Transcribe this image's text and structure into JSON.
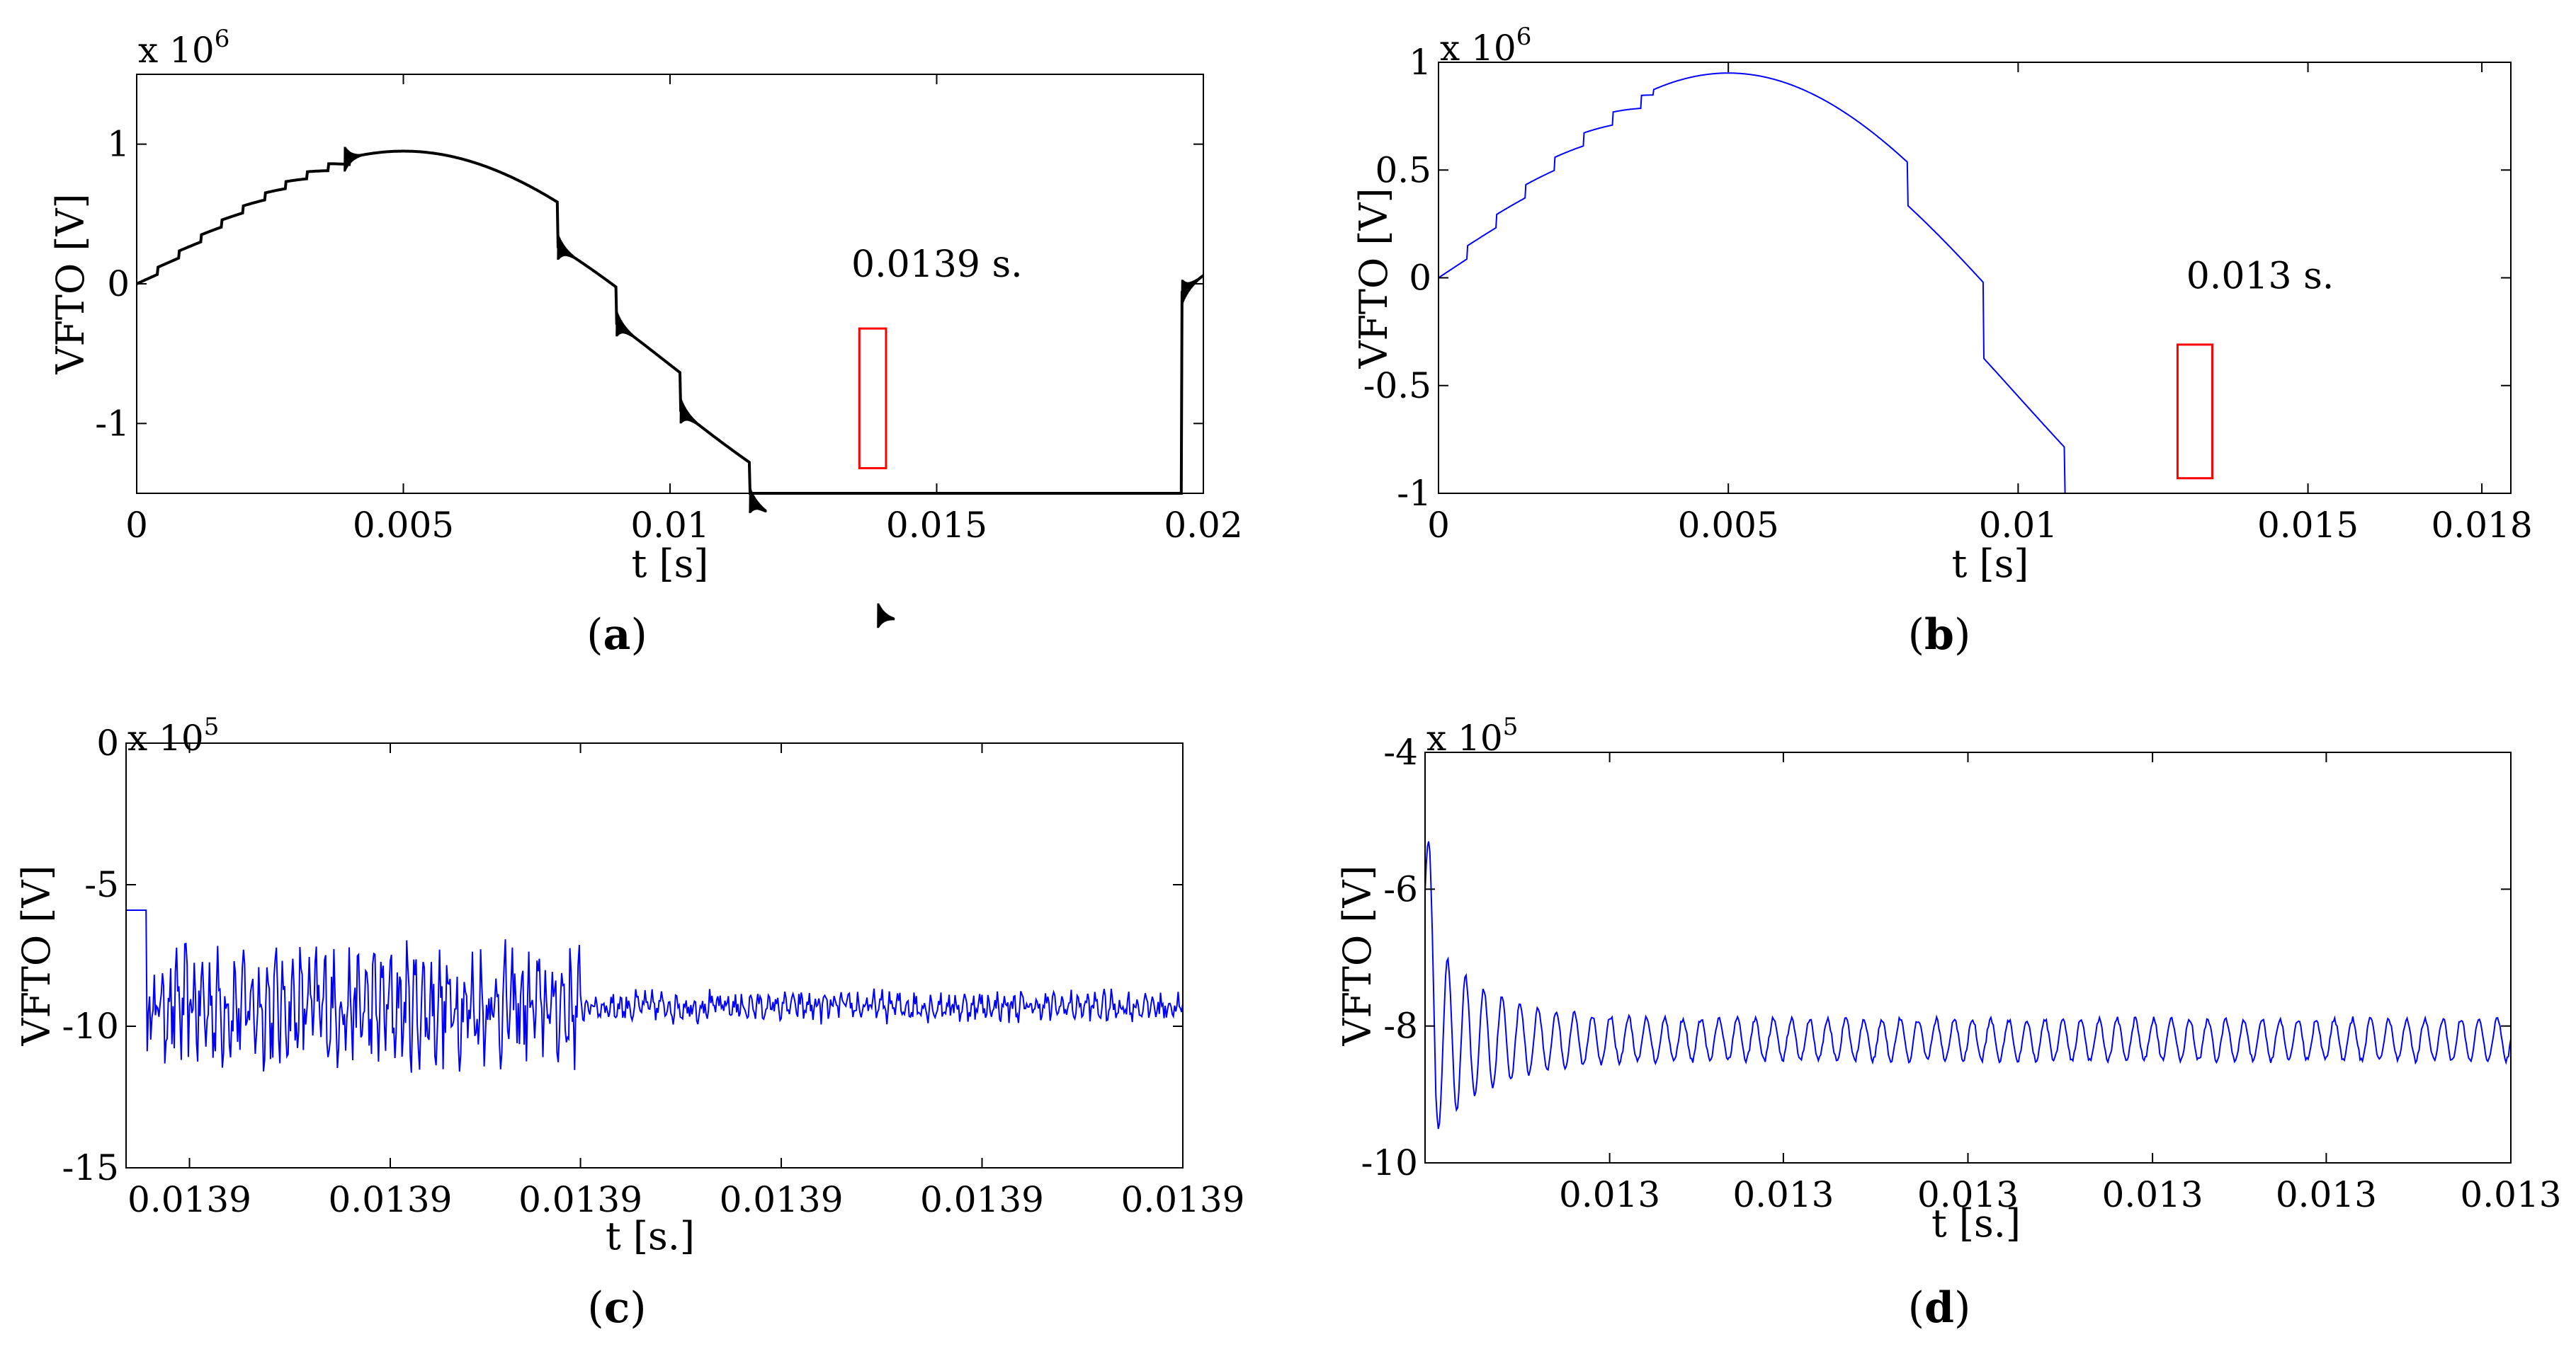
{
  "colors": {
    "black": "#000000",
    "blue": "#0000ff",
    "red": "#ff0000"
  },
  "panels": {
    "a": {
      "label_open": "(",
      "label_letter": "a",
      "label_close": ")"
    },
    "b": {
      "label_open": "(",
      "label_letter": "b",
      "label_close": ")"
    },
    "c": {
      "label_open": "(",
      "label_letter": "c",
      "label_close": ")"
    },
    "d": {
      "label_open": "(",
      "label_letter": "d",
      "label_close": ")"
    }
  },
  "chart_data": [
    {
      "id": "a",
      "type": "line",
      "xlabel": "t [s]",
      "ylabel": "VFTO [V]",
      "exponent_base": "x 10",
      "exponent_power": "6",
      "xlim": [
        0,
        0.02
      ],
      "ylim": [
        -1.5,
        1.5
      ],
      "xticks": [
        0,
        0.005,
        0.01,
        0.015,
        0.02
      ],
      "xtick_labels": [
        "0",
        "0.005",
        "0.01",
        "0.015",
        "0.02"
      ],
      "yticks": [
        -1,
        0,
        1
      ],
      "ytick_labels": [
        "-1",
        "0",
        "1"
      ],
      "series_color": "#000000",
      "series_description": "sine 0.95e6*sin(2*pi*50*t) shifted down at each breaker restrike",
      "step_times": [
        0.0008,
        0.0012,
        0.0016,
        0.002,
        0.0024,
        0.0029,
        0.0039,
        0.0079,
        0.009,
        0.0102,
        0.0115,
        0.0139,
        0.0196
      ],
      "step_offsets": [
        0,
        0,
        0,
        0,
        0,
        0,
        0,
        -0.32,
        -0.58,
        -0.85,
        -1.12,
        -1.48,
        0.06
      ],
      "annotation": {
        "text": "0.0139 s.",
        "x": 0.0134,
        "y": 0.05
      },
      "highlight_box": {
        "x0": 0.01355,
        "x1": 0.01405,
        "y0": -1.32,
        "y1": -0.32
      }
    },
    {
      "id": "b",
      "type": "line",
      "xlabel": "t [s]",
      "ylabel": "VFTO [V]",
      "exponent_base": "x 10",
      "exponent_power": "6",
      "xlim": [
        0,
        0.0185
      ],
      "ylim": [
        -1,
        1
      ],
      "xticks": [
        0,
        0.005,
        0.01,
        0.015,
        0.018
      ],
      "xtick_labels": [
        "0",
        "0.005",
        "0.01",
        "0.015",
        "0.018"
      ],
      "yticks": [
        -1,
        -0.5,
        0,
        0.5,
        1
      ],
      "ytick_labels": [
        "-1",
        "-0.5",
        "0",
        "0.5",
        "1"
      ],
      "series_color": "#0000ff",
      "series_description": "sine 0.95e6*sin(2*pi*50*t) with step changes",
      "step_times": [
        0.0008,
        0.0012,
        0.0016,
        0.0021,
        0.0026,
        0.0036,
        0.0081,
        0.0094,
        0.0108,
        0.013
      ],
      "step_offsets": [
        0,
        0,
        0,
        0,
        0,
        0,
        -0.2,
        -0.55,
        -0.85,
        -0.98
      ],
      "annotation": {
        "text": "0.013 s.",
        "x": 0.0129,
        "y": -0.05
      },
      "highlight_box": {
        "x0": 0.01275,
        "x1": 0.01335,
        "y0": -0.93,
        "y1": -0.31
      }
    },
    {
      "id": "c",
      "type": "line",
      "xlabel": "t [s.]",
      "ylabel": "VFTO [V]",
      "exponent_base": "x 10",
      "exponent_power": "5",
      "xlim": [
        0,
        1
      ],
      "ylim": [
        -15,
        0
      ],
      "xticks": [
        0.06,
        0.25,
        0.43,
        0.62,
        0.81,
        1.0
      ],
      "xtick_labels": [
        "0.0139",
        "0.0139",
        "0.0139",
        "0.0139",
        "0.0139",
        "0.0139"
      ],
      "yticks": [
        -15,
        -10,
        -5,
        0
      ],
      "ytick_labels": [
        "-15",
        "-10",
        "-5",
        "0"
      ],
      "series_color": "#0000ff",
      "series_description": "starts at -5.9, drops to a noisy oscillation around -9.5 (large amplitude until ~0.42, smaller after)",
      "start_level": -5.9,
      "mean_level": -9.3,
      "noise_amplitude_early": 2.2,
      "noise_amplitude_late": 0.6,
      "noise_transition": 0.43
    },
    {
      "id": "d",
      "type": "line",
      "xlabel": "t [s.]",
      "ylabel": "VFTO [V]",
      "exponent_base": "x 10",
      "exponent_power": "5",
      "xlim": [
        0,
        1
      ],
      "ylim": [
        -10,
        -4
      ],
      "xticks": [
        0.17,
        0.33,
        0.5,
        0.67,
        0.83,
        1.0
      ],
      "xtick_labels": [
        "0.013",
        "0.013",
        "0.013",
        "0.013",
        "0.013",
        "0.013"
      ],
      "yticks": [
        -10,
        -8,
        -6,
        -4
      ],
      "ytick_labels": [
        "-10",
        "-8",
        "-6",
        "-4"
      ],
      "series_color": "#0000ff",
      "series_description": "starts near -6, damped oscillation settling to a steady ripple around -8.2",
      "start_level": -6.0,
      "mean_level": -8.2,
      "initial_amplitude": 1.6,
      "steady_amplitude": 0.3,
      "cycles": 60
    }
  ]
}
